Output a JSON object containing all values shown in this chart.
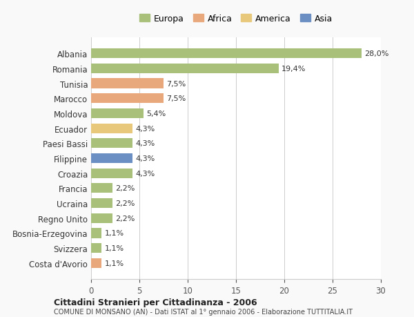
{
  "categories": [
    "Costa d'Avorio",
    "Svizzera",
    "Bosnia-Erzegovina",
    "Regno Unito",
    "Ucraina",
    "Francia",
    "Croazia",
    "Filippine",
    "Paesi Bassi",
    "Ecuador",
    "Moldova",
    "Marocco",
    "Tunisia",
    "Romania",
    "Albania"
  ],
  "values": [
    1.1,
    1.1,
    1.1,
    2.2,
    2.2,
    2.2,
    4.3,
    4.3,
    4.3,
    4.3,
    5.4,
    7.5,
    7.5,
    19.4,
    28.0
  ],
  "labels": [
    "1,1%",
    "1,1%",
    "1,1%",
    "2,2%",
    "2,2%",
    "2,2%",
    "4,3%",
    "4,3%",
    "4,3%",
    "4,3%",
    "5,4%",
    "7,5%",
    "7,5%",
    "19,4%",
    "28,0%"
  ],
  "colors": [
    "#e8a87c",
    "#a8c07a",
    "#a8c07a",
    "#a8c07a",
    "#a8c07a",
    "#a8c07a",
    "#a8c07a",
    "#6b8fc2",
    "#a8c07a",
    "#e8c87a",
    "#a8c07a",
    "#e8a87c",
    "#e8a87c",
    "#a8c07a",
    "#a8c07a"
  ],
  "legend": {
    "Europa": "#a8c07a",
    "Africa": "#e8a87c",
    "America": "#e8c87a",
    "Asia": "#6b8fc2"
  },
  "title": "Cittadini Stranieri per Cittadinanza - 2006",
  "subtitle": "COMUNE DI MONSANO (AN) - Dati ISTAT al 1° gennaio 2006 - Elaborazione TUTTITALIA.IT",
  "xlim": [
    0,
    30
  ],
  "xticks": [
    0,
    5,
    10,
    15,
    20,
    25,
    30
  ],
  "background_color": "#f9f9f9",
  "bar_background": "#ffffff",
  "grid_color": "#cccccc",
  "bar_height": 0.65
}
